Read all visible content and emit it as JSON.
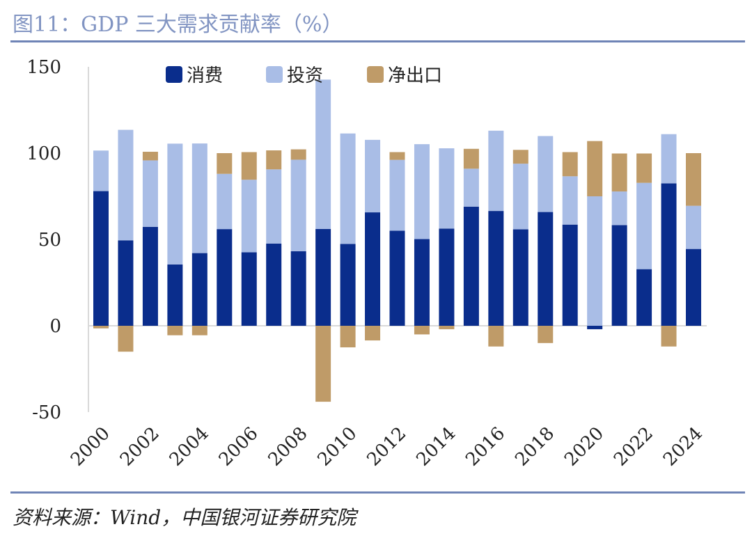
{
  "header": {
    "title": "图11：GDP 三大需求贡献率（%）"
  },
  "footer": {
    "source": "资料来源：Wind，中国银河证券研究院"
  },
  "colors": {
    "consumption": "#0a2d8c",
    "investment": "#a9bde6",
    "net_exports": "#bf9b68",
    "rule": "#6f84b6",
    "title": "#8194c2"
  },
  "chart_data": {
    "type": "bar",
    "stacked": true,
    "title": "",
    "xlabel": "",
    "ylabel": "",
    "ylim": [
      -50,
      150
    ],
    "yticks": [
      -50,
      0,
      50,
      100,
      150
    ],
    "categories": [
      "2000",
      "2001",
      "2002",
      "2003",
      "2004",
      "2005",
      "2006",
      "2007",
      "2008",
      "2009",
      "2010",
      "2011",
      "2012",
      "2013",
      "2014",
      "2015",
      "2016",
      "2017",
      "2018",
      "2019",
      "2020",
      "2021",
      "2022",
      "2023",
      "2024"
    ],
    "xtick_labels": [
      "2000",
      "",
      "2002",
      "",
      "2004",
      "",
      "2006",
      "",
      "2008",
      "",
      "2010",
      "",
      "2012",
      "",
      "2014",
      "",
      "2016",
      "",
      "2018",
      "",
      "2020",
      "",
      "2022",
      "",
      "2024"
    ],
    "legend_position": "top",
    "grid": false,
    "series": [
      {
        "name": "消费",
        "key": "consumption",
        "values": [
          78.0,
          49.5,
          57.3,
          35.5,
          42.1,
          56.0,
          42.6,
          47.6,
          43.2,
          56.1,
          47.4,
          65.7,
          55.1,
          50.2,
          56.3,
          69.0,
          66.5,
          55.9,
          65.9,
          58.6,
          -2.0,
          58.3,
          32.8,
          82.5,
          44.5
        ]
      },
      {
        "name": "投资",
        "key": "investment",
        "values": [
          23.5,
          64.0,
          38.5,
          70.0,
          63.5,
          32.0,
          42.0,
          43.0,
          53.0,
          86.5,
          64.0,
          42.0,
          41.0,
          55.0,
          46.5,
          22.0,
          46.5,
          38.0,
          44.0,
          28.0,
          75.0,
          19.5,
          50.0,
          28.5,
          25.0
        ]
      },
      {
        "name": "净出口",
        "key": "net_exports",
        "values": [
          -1.5,
          -15.0,
          5.0,
          -5.5,
          -5.5,
          12.0,
          16.0,
          11.0,
          6.0,
          -44.0,
          -12.5,
          -8.5,
          4.5,
          -5.0,
          -2.0,
          11.5,
          -12.0,
          8.0,
          -10.0,
          14.0,
          32.0,
          22.0,
          17.0,
          -12.0,
          30.5
        ]
      }
    ]
  }
}
